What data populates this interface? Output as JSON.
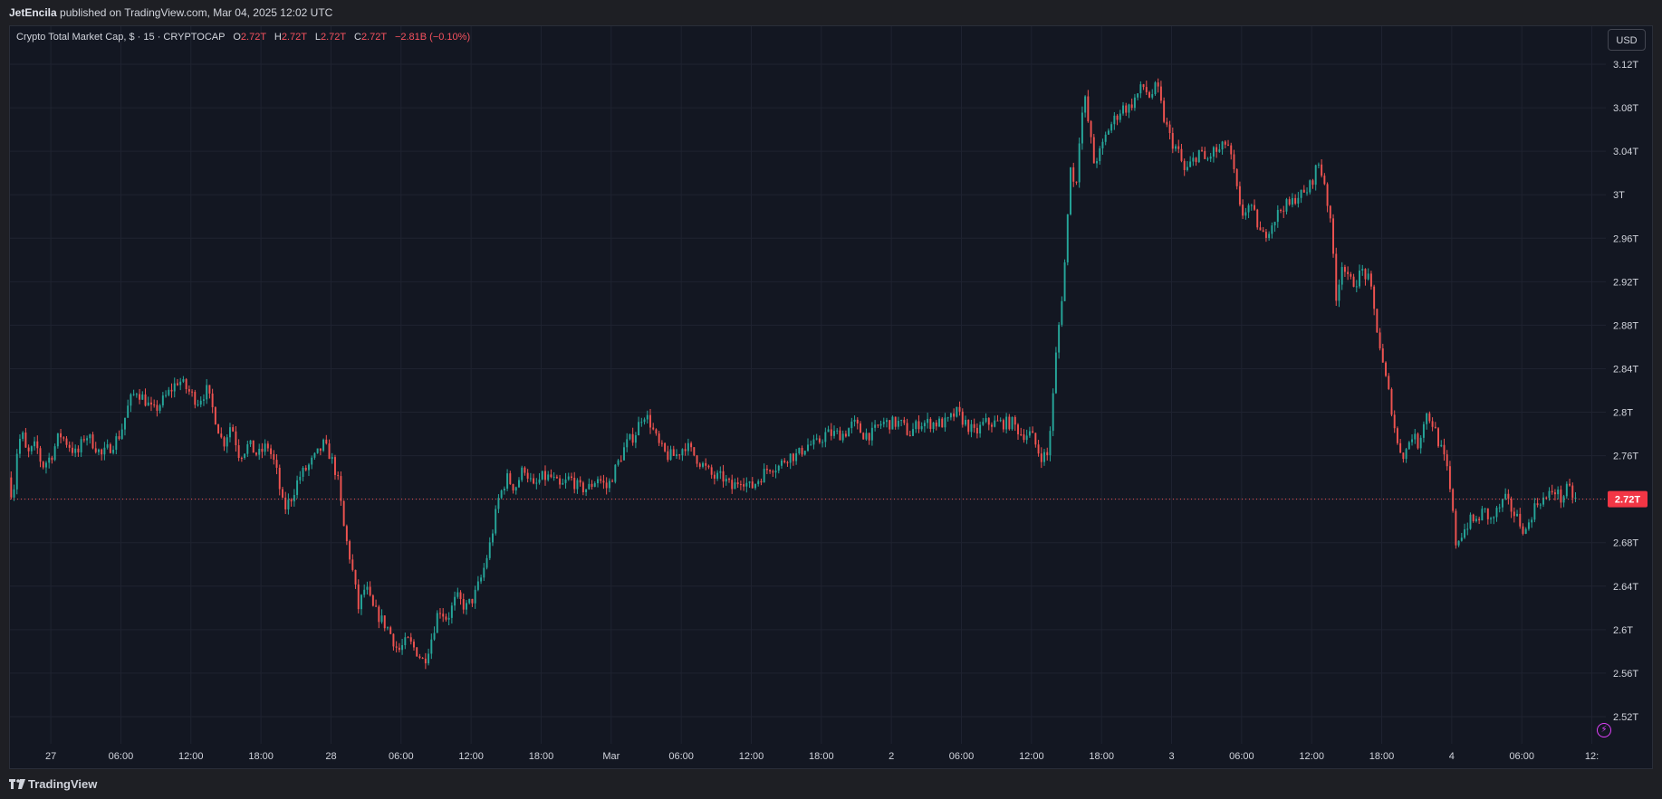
{
  "header": {
    "author": "JetEncila",
    "published_text": "published on TradingView.com, Mar 04, 2025 12:02 UTC"
  },
  "legend": {
    "symbol_text": "Crypto Total Market Cap, $ · 15 · CRYPTOCAP",
    "o_label": "O",
    "o_value": "2.72T",
    "h_label": "H",
    "h_value": "2.72T",
    "l_label": "L",
    "l_value": "2.72T",
    "c_label": "C",
    "c_value": "2.72T",
    "change": "−2.81B (−0.10%)"
  },
  "currency_button": "USD",
  "footer": {
    "brand": "TradingView"
  },
  "colors": {
    "up": "#26a69a",
    "down": "#ef5350",
    "price_label_bg": "#f23645",
    "background": "#131722",
    "grid": "#1f2330"
  },
  "chart_data": {
    "type": "candlestick",
    "title": "Crypto Total Market Cap, $ · 15 · CRYPTOCAP",
    "yaxis_unit": "T",
    "ylim": [
      2.495,
      3.155
    ],
    "y_ticks": [
      "3.12T",
      "3.08T",
      "3.04T",
      "3T",
      "2.96T",
      "2.92T",
      "2.88T",
      "2.84T",
      "2.8T",
      "2.76T",
      "2.72T",
      "2.68T",
      "2.64T",
      "2.6T",
      "2.56T",
      "2.52T"
    ],
    "y_tick_values": [
      3.12,
      3.08,
      3.04,
      3.0,
      2.96,
      2.92,
      2.88,
      2.84,
      2.8,
      2.76,
      2.72,
      2.68,
      2.64,
      2.6,
      2.56,
      2.52
    ],
    "x_ticks": [
      "27",
      "06:00",
      "12:00",
      "18:00",
      "28",
      "06:00",
      "12:00",
      "18:00",
      "Mar",
      "06:00",
      "12:00",
      "18:00",
      "2",
      "06:00",
      "12:00",
      "18:00",
      "3",
      "06:00",
      "12:00",
      "18:00",
      "4",
      "06:00",
      "12:"
    ],
    "x_hours": [
      0,
      6,
      12,
      18,
      24,
      30,
      36,
      42,
      48,
      54,
      60,
      66,
      72,
      78,
      84,
      90,
      96,
      102,
      108,
      114,
      120,
      126,
      132
    ],
    "x_range_hours": [
      -3.5,
      133.2
    ],
    "current_price": 2.72,
    "current_price_label": "2.72T",
    "price_path": [
      [
        -3.4,
        2.74
      ],
      [
        -3.0,
        2.72
      ],
      [
        -2.6,
        2.77
      ],
      [
        -2.2,
        2.78
      ],
      [
        -1.8,
        2.76
      ],
      [
        -1.0,
        2.77
      ],
      [
        -0.5,
        2.75
      ],
      [
        0.3,
        2.76
      ],
      [
        1.0,
        2.78
      ],
      [
        1.8,
        2.77
      ],
      [
        2.5,
        2.76
      ],
      [
        3.2,
        2.78
      ],
      [
        4.0,
        2.77
      ],
      [
        4.6,
        2.76
      ],
      [
        5.5,
        2.77
      ],
      [
        6.2,
        2.78
      ],
      [
        7.0,
        2.81
      ],
      [
        7.6,
        2.82
      ],
      [
        8.4,
        2.81
      ],
      [
        9.0,
        2.8
      ],
      [
        9.8,
        2.81
      ],
      [
        10.5,
        2.82
      ],
      [
        11.2,
        2.83
      ],
      [
        12.0,
        2.82
      ],
      [
        12.8,
        2.81
      ],
      [
        13.6,
        2.82
      ],
      [
        14.2,
        2.8
      ],
      [
        15.0,
        2.77
      ],
      [
        15.7,
        2.79
      ],
      [
        16.4,
        2.76
      ],
      [
        17.2,
        2.77
      ],
      [
        18.0,
        2.76
      ],
      [
        18.8,
        2.77
      ],
      [
        19.5,
        2.75
      ],
      [
        20.2,
        2.71
      ],
      [
        20.8,
        2.72
      ],
      [
        21.5,
        2.74
      ],
      [
        22.3,
        2.75
      ],
      [
        23.0,
        2.76
      ],
      [
        23.6,
        2.77
      ],
      [
        24.2,
        2.76
      ],
      [
        24.8,
        2.74
      ],
      [
        25.4,
        2.69
      ],
      [
        26.0,
        2.66
      ],
      [
        26.6,
        2.62
      ],
      [
        27.2,
        2.64
      ],
      [
        27.8,
        2.62
      ],
      [
        28.5,
        2.61
      ],
      [
        29.2,
        2.6
      ],
      [
        30.0,
        2.58
      ],
      [
        30.8,
        2.59
      ],
      [
        31.6,
        2.58
      ],
      [
        32.2,
        2.57
      ],
      [
        32.8,
        2.59
      ],
      [
        33.5,
        2.62
      ],
      [
        34.2,
        2.61
      ],
      [
        35.0,
        2.63
      ],
      [
        35.8,
        2.62
      ],
      [
        36.5,
        2.63
      ],
      [
        37.2,
        2.65
      ],
      [
        37.9,
        2.68
      ],
      [
        38.6,
        2.72
      ],
      [
        39.3,
        2.74
      ],
      [
        40.0,
        2.73
      ],
      [
        40.8,
        2.75
      ],
      [
        41.6,
        2.73
      ],
      [
        42.3,
        2.74
      ],
      [
        43.1,
        2.74
      ],
      [
        43.9,
        2.73
      ],
      [
        44.7,
        2.74
      ],
      [
        45.5,
        2.73
      ],
      [
        46.3,
        2.73
      ],
      [
        47.1,
        2.74
      ],
      [
        47.9,
        2.73
      ],
      [
        48.7,
        2.75
      ],
      [
        49.5,
        2.77
      ],
      [
        50.3,
        2.78
      ],
      [
        51.0,
        2.8
      ],
      [
        51.6,
        2.79
      ],
      [
        52.3,
        2.77
      ],
      [
        53.0,
        2.76
      ],
      [
        53.8,
        2.76
      ],
      [
        54.6,
        2.77
      ],
      [
        55.4,
        2.76
      ],
      [
        56.2,
        2.75
      ],
      [
        57.0,
        2.74
      ],
      [
        57.8,
        2.74
      ],
      [
        58.6,
        2.73
      ],
      [
        59.4,
        2.74
      ],
      [
        60.2,
        2.73
      ],
      [
        61.0,
        2.74
      ],
      [
        61.8,
        2.75
      ],
      [
        62.6,
        2.75
      ],
      [
        63.4,
        2.76
      ],
      [
        64.2,
        2.76
      ],
      [
        65.0,
        2.77
      ],
      [
        65.8,
        2.77
      ],
      [
        66.6,
        2.78
      ],
      [
        67.4,
        2.78
      ],
      [
        68.2,
        2.78
      ],
      [
        69.0,
        2.79
      ],
      [
        69.8,
        2.78
      ],
      [
        70.6,
        2.78
      ],
      [
        71.4,
        2.79
      ],
      [
        72.2,
        2.79
      ],
      [
        73.0,
        2.79
      ],
      [
        73.8,
        2.78
      ],
      [
        74.6,
        2.79
      ],
      [
        75.4,
        2.79
      ],
      [
        76.2,
        2.79
      ],
      [
        77.0,
        2.79
      ],
      [
        77.8,
        2.8
      ],
      [
        78.6,
        2.79
      ],
      [
        79.4,
        2.78
      ],
      [
        80.2,
        2.79
      ],
      [
        81.0,
        2.79
      ],
      [
        81.8,
        2.79
      ],
      [
        82.6,
        2.79
      ],
      [
        83.4,
        2.78
      ],
      [
        84.2,
        2.78
      ],
      [
        85.0,
        2.76
      ],
      [
        85.6,
        2.76
      ],
      [
        86.0,
        2.8
      ],
      [
        86.4,
        2.86
      ],
      [
        86.8,
        2.9
      ],
      [
        87.2,
        2.95
      ],
      [
        87.6,
        3.03
      ],
      [
        88.0,
        3.0
      ],
      [
        88.4,
        3.06
      ],
      [
        88.8,
        3.09
      ],
      [
        89.2,
        3.06
      ],
      [
        89.6,
        3.03
      ],
      [
        90.2,
        3.04
      ],
      [
        90.8,
        3.06
      ],
      [
        91.4,
        3.07
      ],
      [
        92.0,
        3.08
      ],
      [
        92.6,
        3.08
      ],
      [
        93.2,
        3.09
      ],
      [
        93.8,
        3.1
      ],
      [
        94.4,
        3.09
      ],
      [
        95.0,
        3.1
      ],
      [
        95.6,
        3.07
      ],
      [
        96.2,
        3.05
      ],
      [
        96.8,
        3.04
      ],
      [
        97.4,
        3.02
      ],
      [
        98.0,
        3.03
      ],
      [
        98.6,
        3.04
      ],
      [
        99.2,
        3.03
      ],
      [
        99.8,
        3.04
      ],
      [
        100.4,
        3.04
      ],
      [
        101.0,
        3.05
      ],
      [
        101.6,
        3.02
      ],
      [
        102.2,
        2.98
      ],
      [
        102.8,
        2.99
      ],
      [
        103.4,
        2.98
      ],
      [
        104.0,
        2.96
      ],
      [
        104.6,
        2.97
      ],
      [
        105.2,
        2.98
      ],
      [
        105.8,
        2.99
      ],
      [
        106.4,
        2.99
      ],
      [
        107.0,
        3.0
      ],
      [
        107.6,
        3.0
      ],
      [
        108.2,
        3.01
      ],
      [
        108.8,
        3.03
      ],
      [
        109.4,
        3.01
      ],
      [
        110.0,
        2.96
      ],
      [
        110.4,
        2.9
      ],
      [
        110.8,
        2.94
      ],
      [
        111.4,
        2.92
      ],
      [
        112.0,
        2.92
      ],
      [
        112.6,
        2.93
      ],
      [
        113.2,
        2.92
      ],
      [
        113.8,
        2.88
      ],
      [
        114.4,
        2.84
      ],
      [
        115.0,
        2.81
      ],
      [
        115.6,
        2.77
      ],
      [
        116.2,
        2.76
      ],
      [
        116.8,
        2.78
      ],
      [
        117.4,
        2.77
      ],
      [
        118.0,
        2.8
      ],
      [
        118.6,
        2.79
      ],
      [
        119.2,
        2.77
      ],
      [
        119.8,
        2.75
      ],
      [
        120.2,
        2.72
      ],
      [
        120.6,
        2.68
      ],
      [
        121.2,
        2.69
      ],
      [
        121.8,
        2.7
      ],
      [
        122.4,
        2.7
      ],
      [
        123.0,
        2.71
      ],
      [
        123.6,
        2.7
      ],
      [
        124.2,
        2.71
      ],
      [
        124.8,
        2.72
      ],
      [
        125.4,
        2.71
      ],
      [
        126.0,
        2.7
      ],
      [
        126.6,
        2.69
      ],
      [
        127.2,
        2.71
      ],
      [
        127.8,
        2.72
      ],
      [
        128.4,
        2.72
      ],
      [
        129.0,
        2.73
      ],
      [
        129.6,
        2.72
      ],
      [
        130.2,
        2.73
      ],
      [
        130.8,
        2.72
      ]
    ]
  }
}
